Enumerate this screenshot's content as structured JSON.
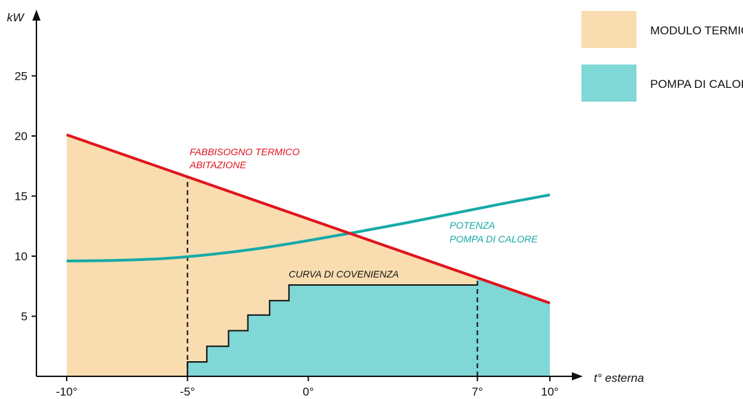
{
  "chart_data": {
    "type": "line",
    "xlabel": "t° esterna",
    "ylabel": "kW",
    "xlim": [
      -10,
      10
    ],
    "ylim": [
      0,
      30
    ],
    "x_ticks": [
      {
        "value": -10,
        "label": "-10°"
      },
      {
        "value": -5,
        "label": "-5°"
      },
      {
        "value": 0,
        "label": "0°"
      },
      {
        "value": 7,
        "label": "7°"
      },
      {
        "value": 10,
        "label": "10°"
      }
    ],
    "y_ticks": [
      {
        "value": 5,
        "label": "5"
      },
      {
        "value": 10,
        "label": "10"
      },
      {
        "value": 15,
        "label": "15"
      },
      {
        "value": 20,
        "label": "20"
      },
      {
        "value": 25,
        "label": "25"
      }
    ],
    "series": [
      {
        "name": "FABBISOGNO TERMICO ABITAZIONE",
        "color": "#e0141e",
        "x": [
          -10,
          10
        ],
        "y": [
          20.1,
          6.1
        ]
      },
      {
        "name": "POTENZA POMPA DI CALORE",
        "color": "#16a9a8",
        "x": [
          -10,
          -8,
          -6,
          -4,
          -2,
          0,
          2,
          4,
          6,
          8,
          10
        ],
        "y": [
          9.6,
          9.65,
          9.8,
          10.15,
          10.65,
          11.3,
          12.0,
          12.75,
          13.55,
          14.35,
          15.1
        ]
      },
      {
        "name": "CURVA DI COVENIENZA",
        "color": "#111111",
        "type": "step",
        "x": [
          -5,
          -4.2,
          -3.3,
          -2.5,
          -1.6,
          -0.8,
          7
        ],
        "y": [
          1.2,
          2.5,
          3.8,
          5.1,
          6.3,
          7.6,
          7.6
        ]
      }
    ],
    "dashed_guides": [
      -5,
      7
    ],
    "annotations": [
      {
        "lines": [
          "FABBISOGNO TERMICO",
          "ABITAZIONE"
        ],
        "color": "#e0141e"
      },
      {
        "lines": [
          "POTENZA",
          "POMPA DI CALORE"
        ],
        "color": "#16a9a8"
      },
      {
        "lines": [
          "CURVA DI COVENIENZA"
        ],
        "color": "#111111"
      }
    ],
    "legend": {
      "position": "top-right",
      "items": [
        {
          "label": "MODULO TERMICO",
          "color": "#f9ddb1"
        },
        {
          "label": "POMPA DI CALORE",
          "color": "#7fd7d6"
        }
      ]
    },
    "fill_colors": {
      "modulo_termico": "#f9ddb1",
      "pompa_di_calore": "#7fd7d6"
    },
    "grid": false
  }
}
